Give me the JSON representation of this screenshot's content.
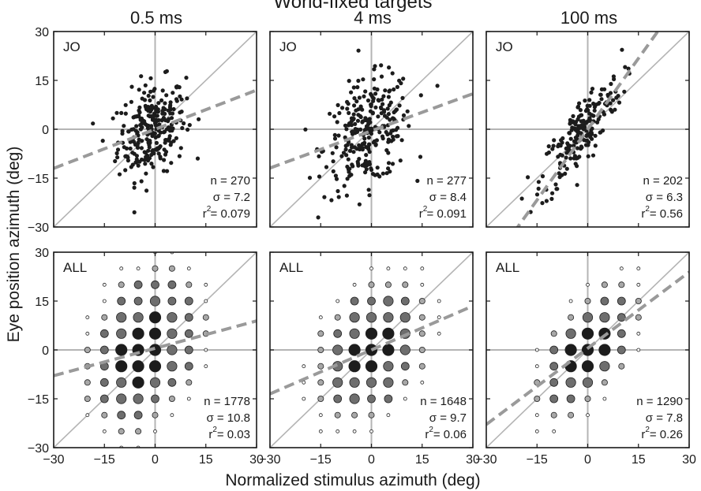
{
  "title": "World-fixed targets",
  "xlabel": "Normalized stimulus azimuth (deg)",
  "ylabel": "Eye position azimuth (deg)",
  "column_titles": [
    "0.5 ms",
    "4 ms",
    "100 ms"
  ],
  "colors": {
    "ink": "#1a1a1a",
    "fit_line": "#9a9a9a",
    "unity": "#b4b4b4",
    "axes_cross": "#b4b4b4",
    "dot_dark": "#1c1c1c",
    "dot_mid": "#6e6e6e",
    "dot_light": "#a8a8a8"
  },
  "chart_data": [
    {
      "type": "scatter",
      "subject": "JO",
      "duration": "0.5 ms",
      "xlim": [
        -30,
        30
      ],
      "ylim": [
        -30,
        30
      ],
      "xticks": [
        -30,
        -15,
        0,
        15,
        30
      ],
      "yticks": [
        -30,
        -15,
        0,
        15,
        30
      ],
      "n": "n = 270",
      "sigma": "σ = 7.2",
      "r2": "= 0.079",
      "fit": {
        "intercept": 0.0,
        "slope": 0.4
      },
      "count": 270,
      "center": [
        -1.0,
        0.0
      ],
      "spread": [
        5.0,
        7.2
      ],
      "rho": 0.25
    },
    {
      "type": "scatter",
      "subject": "JO",
      "duration": "4 ms",
      "xlim": [
        -30,
        30
      ],
      "ylim": [
        -30,
        30
      ],
      "xticks": [
        -30,
        -15,
        0,
        15,
        30
      ],
      "yticks": [
        -30,
        -15,
        0,
        15,
        30
      ],
      "n": "n = 277",
      "sigma": "σ = 8.4",
      "r2": "= 0.091",
      "fit": {
        "intercept": -0.5,
        "slope": 0.38
      },
      "count": 277,
      "center": [
        -1.0,
        -1.0
      ],
      "spread": [
        6.5,
        8.4
      ],
      "rho": 0.3
    },
    {
      "type": "scatter",
      "subject": "JO",
      "duration": "100 ms",
      "xlim": [
        -30,
        30
      ],
      "ylim": [
        -30,
        30
      ],
      "xticks": [
        -30,
        -15,
        0,
        15,
        30
      ],
      "yticks": [
        -30,
        -15,
        0,
        15,
        30
      ],
      "n": "n = 202",
      "sigma": "σ = 6.3",
      "r2": "= 0.56",
      "fit": {
        "intercept": 0.0,
        "slope": 1.45
      },
      "count": 202,
      "center": [
        -2.0,
        -1.0
      ],
      "spread": [
        6.0,
        9.0
      ],
      "rho": 0.82
    },
    {
      "type": "scatter",
      "subject": "ALL",
      "duration": "0.5 ms",
      "xlim": [
        -30,
        30
      ],
      "ylim": [
        -30,
        30
      ],
      "xticks": [
        -30,
        -15,
        0,
        15,
        30
      ],
      "yticks": [
        -30,
        -15,
        0,
        15,
        30
      ],
      "n": "n = 1778",
      "sigma": "σ = 10.8",
      "r2": "= 0.03",
      "fit": {
        "intercept": 0.5,
        "slope": 0.28
      },
      "grid": {
        "x_center": -3,
        "y_center": 0,
        "sx": 9,
        "sy": 13,
        "rho": 0.25
      }
    },
    {
      "type": "scatter",
      "subject": "ALL",
      "duration": "4 ms",
      "xlim": [
        -30,
        30
      ],
      "ylim": [
        -30,
        30
      ],
      "xticks": [
        -30,
        -15,
        0,
        15,
        30
      ],
      "yticks": [
        -30,
        -15,
        0,
        15,
        30
      ],
      "n": "n = 1648",
      "sigma": "σ = 9.7",
      "r2": "= 0.06",
      "fit": {
        "intercept": 0.0,
        "slope": 0.45
      },
      "grid": {
        "x_center": 0,
        "y_center": 0,
        "sx": 9,
        "sy": 12,
        "rho": 0.35
      }
    },
    {
      "type": "scatter",
      "subject": "ALL",
      "duration": "100 ms",
      "xlim": [
        -30,
        30
      ],
      "ylim": [
        -30,
        30
      ],
      "xticks": [
        -30,
        -15,
        0,
        15,
        30
      ],
      "yticks": [
        -30,
        -15,
        0,
        15,
        30
      ],
      "n": "n = 1290",
      "sigma": "σ = 7.8",
      "r2": "= 0.26",
      "fit": {
        "intercept": 0.5,
        "slope": 0.78
      },
      "grid": {
        "x_center": 0,
        "y_center": 0,
        "sx": 8,
        "sy": 11,
        "rho": 0.6
      }
    }
  ]
}
